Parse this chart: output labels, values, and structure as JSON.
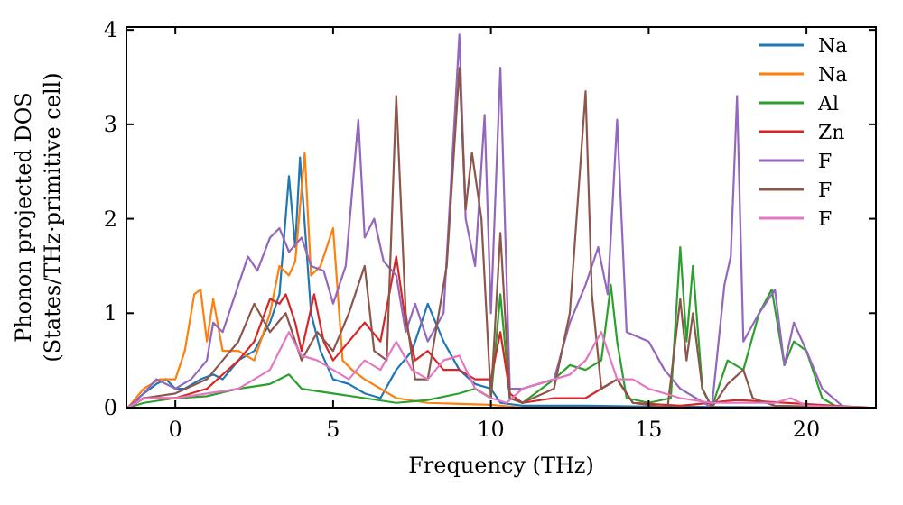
{
  "chart_data": {
    "type": "line",
    "xlabel": "Frequency (THz)",
    "ylabel": "Phonon projected DOS\n(States/THz·primitive cell)",
    "xlim": [
      -1.55,
      22.2
    ],
    "ylim": [
      0,
      4.03
    ],
    "xticks": [
      0,
      5,
      10,
      15,
      20
    ],
    "yticks": [
      0,
      1,
      2,
      3,
      4
    ],
    "grid": false,
    "legend": "top right",
    "series": [
      {
        "name": "Na",
        "color": "#1f77b4",
        "x": [
          -1.5,
          -1,
          -0.6,
          -0.3,
          0,
          0.3,
          0.8,
          1.2,
          1.5,
          2,
          2.5,
          3,
          3.3,
          3.6,
          3.8,
          3.95,
          4.3,
          4.6,
          5,
          5.5,
          6,
          6.5,
          7,
          7.5,
          8,
          8.5,
          9,
          9.5,
          10,
          10.3,
          11,
          13,
          15,
          22
        ],
        "values": [
          0,
          0.15,
          0.25,
          0.3,
          0.2,
          0.2,
          0.3,
          0.35,
          0.3,
          0.5,
          0.6,
          0.9,
          1.2,
          2.45,
          1.7,
          2.65,
          1,
          0.6,
          0.3,
          0.25,
          0.15,
          0.1,
          0.4,
          0.6,
          1.1,
          0.7,
          0.4,
          0.25,
          0.2,
          0.05,
          0.02,
          0.02,
          0.01,
          0
        ]
      },
      {
        "name": "Na",
        "color": "#ff7f0e",
        "x": [
          -1.5,
          -1,
          -0.5,
          0,
          0.3,
          0.6,
          0.8,
          1,
          1.2,
          1.5,
          2,
          2.5,
          3,
          3.3,
          3.6,
          3.8,
          4.1,
          4.3,
          4.6,
          5,
          5.3,
          5.6,
          6,
          6.5,
          7,
          8,
          10,
          11,
          22
        ],
        "values": [
          0,
          0.2,
          0.3,
          0.3,
          0.6,
          1.2,
          1.25,
          0.7,
          1.15,
          0.6,
          0.6,
          0.5,
          1,
          1.5,
          1.4,
          1.55,
          2.7,
          1.4,
          1.5,
          1.9,
          0.5,
          0.4,
          0.3,
          0.2,
          0.1,
          0.05,
          0.03,
          0,
          0
        ]
      },
      {
        "name": "Al",
        "color": "#2ca02c",
        "x": [
          -1.5,
          -1,
          0,
          1,
          2,
          3,
          3.6,
          4,
          5,
          6,
          7,
          8,
          9,
          9.5,
          10,
          10.3,
          10.6,
          11,
          12,
          12.5,
          13,
          13.5,
          13.8,
          14,
          14.3,
          15,
          15.7,
          16,
          16.2,
          16.4,
          16.7,
          17,
          17.5,
          18,
          18.5,
          18.9,
          19.3,
          19.6,
          20,
          20.5,
          21,
          22
        ],
        "values": [
          0,
          0.05,
          0.1,
          0.12,
          0.2,
          0.25,
          0.35,
          0.2,
          0.15,
          0.1,
          0.05,
          0.08,
          0.15,
          0.2,
          0.1,
          1.2,
          0.1,
          0.05,
          0.3,
          0.45,
          0.4,
          0.5,
          1.3,
          0.7,
          0.1,
          0.05,
          0.1,
          1.7,
          0.7,
          1.5,
          0.2,
          0,
          0.5,
          0.4,
          1,
          1.25,
          0.45,
          0.7,
          0.6,
          0.1,
          0,
          0
        ]
      },
      {
        "name": "Zn",
        "color": "#d62728",
        "x": [
          -1.5,
          -1,
          0,
          1,
          2,
          2.5,
          3,
          3.3,
          3.5,
          3.8,
          4,
          4.4,
          4.7,
          5,
          6,
          6.5,
          7,
          7.3,
          7.6,
          8,
          8.5,
          9,
          9.5,
          10,
          10.3,
          10.6,
          11,
          12,
          13,
          13.5,
          14,
          14.5,
          16,
          17.8,
          22
        ],
        "values": [
          0,
          0.1,
          0.1,
          0.2,
          0.5,
          0.7,
          1.15,
          1.1,
          1.2,
          0.9,
          0.6,
          1.2,
          0.7,
          0.5,
          0.9,
          0.7,
          1.6,
          0.9,
          0.5,
          0.6,
          0.4,
          0.4,
          0.3,
          0.3,
          0.8,
          0.15,
          0.05,
          0.1,
          0.1,
          0.2,
          0.3,
          0.05,
          0.02,
          0.08,
          0
        ]
      },
      {
        "name": "F",
        "color": "#9467bd",
        "x": [
          -1.5,
          -1,
          -0.6,
          0,
          0.5,
          1,
          1.2,
          1.5,
          2,
          2.3,
          2.6,
          3,
          3.3,
          3.6,
          4,
          4.3,
          4.7,
          5,
          5.4,
          5.8,
          6,
          6.3,
          6.6,
          7,
          7.3,
          7.6,
          8,
          8.5,
          9,
          9.2,
          9.5,
          9.8,
          10,
          10.3,
          10.6,
          11,
          12,
          12.5,
          13,
          13.4,
          13.7,
          14,
          14.3,
          15,
          15.5,
          16,
          16.5,
          17,
          17.4,
          17.6,
          17.8,
          18,
          18.5,
          19,
          19.3,
          19.6,
          20,
          20.5,
          21.2,
          22
        ],
        "values": [
          0,
          0.15,
          0.3,
          0.2,
          0.3,
          0.5,
          0.9,
          0.8,
          1.3,
          1.6,
          1.45,
          1.8,
          1.9,
          1.65,
          1.8,
          1.5,
          1.45,
          1.1,
          1.5,
          3.05,
          1.8,
          2,
          1.55,
          1.4,
          0.8,
          1.1,
          0.7,
          1,
          3.95,
          2,
          1.5,
          3.1,
          1,
          3.6,
          0.2,
          0.2,
          0.3,
          0.9,
          1.3,
          1.7,
          1.2,
          3.05,
          0.8,
          0.7,
          0.4,
          0.2,
          0.1,
          0,
          1.3,
          1.6,
          3.3,
          0.7,
          1,
          1.25,
          0.45,
          0.9,
          0.6,
          0.2,
          0,
          0
        ]
      },
      {
        "name": "F",
        "color": "#8c564b",
        "x": [
          -1.5,
          -1,
          0,
          1,
          1.5,
          2,
          2.5,
          3,
          3.5,
          4,
          4.5,
          5,
          5.5,
          6,
          6.3,
          6.7,
          7,
          7.3,
          7.6,
          8,
          8.6,
          9,
          9.2,
          9.4,
          9.7,
          10,
          10.3,
          10.6,
          11,
          12,
          12.5,
          13,
          13.2,
          13.5,
          14,
          14.5,
          15.6,
          16,
          16.2,
          16.4,
          16.7,
          17,
          17.5,
          18,
          18.3,
          19,
          22
        ],
        "values": [
          0,
          0.1,
          0.15,
          0.3,
          0.5,
          0.7,
          1.1,
          0.8,
          1,
          0.5,
          0.8,
          0.6,
          1,
          1.5,
          0.6,
          0.5,
          3.3,
          1,
          0.3,
          0.3,
          1.5,
          3.6,
          2.1,
          2.7,
          2,
          0.1,
          1.85,
          0.1,
          0.05,
          0.2,
          1,
          3.35,
          1.2,
          0.2,
          0.3,
          0.05,
          0,
          1.15,
          0.5,
          1,
          0.2,
          0,
          0.25,
          0.4,
          0.1,
          0.02,
          0
        ]
      },
      {
        "name": "F",
        "color": "#e377c2",
        "x": [
          -1.5,
          -1,
          0,
          1,
          2,
          2.5,
          3,
          3.6,
          4,
          4.5,
          5,
          5.5,
          6,
          6.5,
          7,
          7.5,
          8,
          8.5,
          9,
          9.5,
          10,
          10.5,
          11,
          12,
          12.5,
          13,
          13.5,
          14,
          14.5,
          15,
          16,
          17,
          18,
          19,
          19.5,
          20,
          22
        ],
        "values": [
          0,
          0.1,
          0.1,
          0.15,
          0.2,
          0.3,
          0.4,
          0.8,
          0.55,
          0.5,
          0.4,
          0.3,
          0.5,
          0.4,
          0.7,
          0.4,
          0.3,
          0.5,
          0.55,
          0.2,
          0.1,
          0.05,
          0.2,
          0.3,
          0.35,
          0.5,
          0.8,
          0.3,
          0.3,
          0.2,
          0.1,
          0.05,
          0.05,
          0.05,
          0.1,
          0.02,
          0
        ]
      }
    ]
  }
}
